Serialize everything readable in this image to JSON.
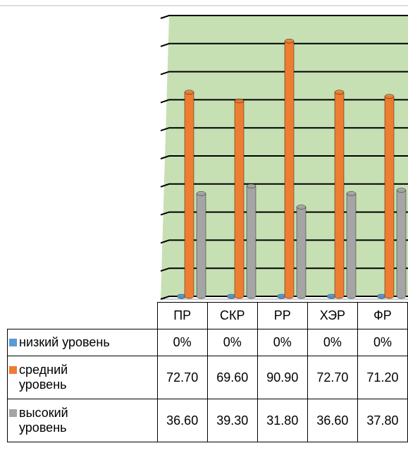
{
  "chart_data": {
    "type": "bar3d",
    "categories": [
      "ПР",
      "СКР",
      "РР",
      "ХЭР",
      "ФР"
    ],
    "series": [
      {
        "name": "низкий уровень",
        "color": "#5b9bd5",
        "values": [
          0,
          0,
          0,
          0,
          0
        ],
        "value_labels": [
          "0%",
          "0%",
          "0%",
          "0%",
          "0%"
        ]
      },
      {
        "name": "средний уровень",
        "color": "#ed7d31",
        "values": [
          72.7,
          69.6,
          90.9,
          72.7,
          71.2
        ],
        "value_labels": [
          "72.70",
          "69.60",
          "90.90",
          "72.70",
          "71.20"
        ]
      },
      {
        "name": "высокий уровень",
        "color": "#a5a5a5",
        "values": [
          36.6,
          39.3,
          31.8,
          36.6,
          37.8
        ],
        "value_labels": [
          "36.60",
          "39.30",
          "31.80",
          "36.60",
          "37.80"
        ]
      }
    ],
    "ylim": [
      0,
      100
    ],
    "yticks": [
      0,
      10,
      20,
      30,
      40,
      50,
      60,
      70,
      80,
      90,
      100
    ],
    "grid": true,
    "background": "#c6e0b4"
  }
}
